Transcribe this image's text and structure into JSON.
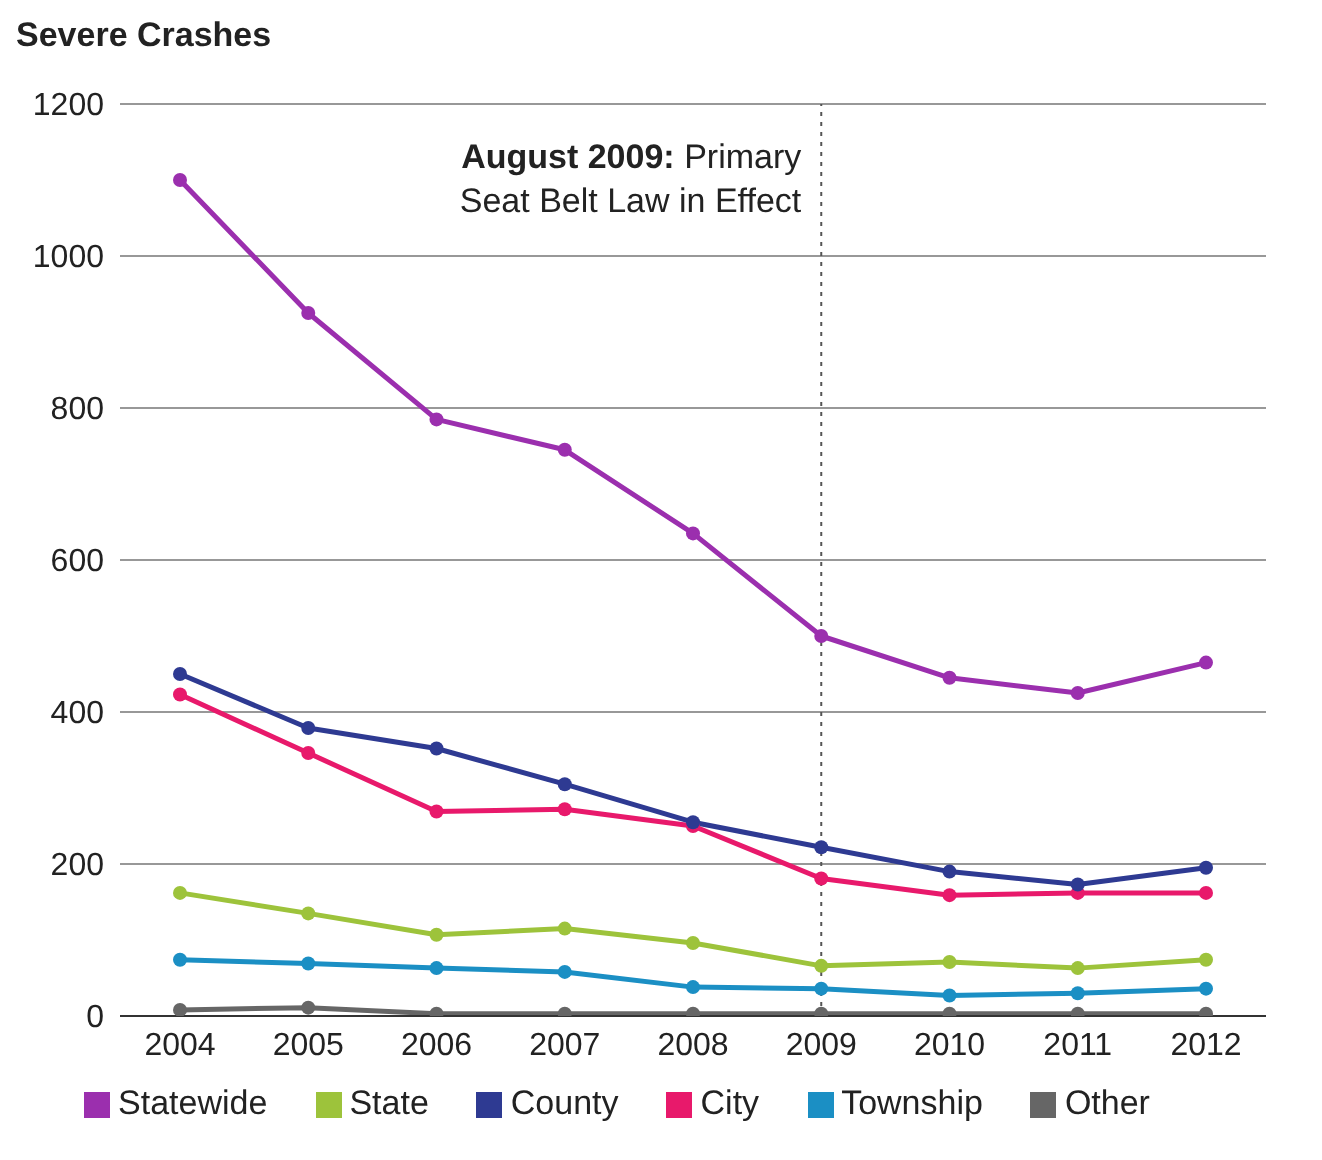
{
  "chart_data": {
    "type": "line",
    "title": "Severe Crashes",
    "categories": [
      "2004",
      "2005",
      "2006",
      "2007",
      "2008",
      "2009",
      "2010",
      "2011",
      "2012"
    ],
    "series": [
      {
        "name": "Statewide",
        "color": "#9b2fae",
        "values": [
          1100,
          925,
          785,
          745,
          635,
          500,
          445,
          425,
          465
        ]
      },
      {
        "name": "State",
        "color": "#9dc33b",
        "values": [
          162,
          135,
          107,
          115,
          96,
          66,
          71,
          63,
          74
        ]
      },
      {
        "name": "County",
        "color": "#2e3a92",
        "values": [
          450,
          379,
          352,
          305,
          255,
          222,
          190,
          173,
          195
        ]
      },
      {
        "name": "City",
        "color": "#e8196b",
        "values": [
          423,
          346,
          269,
          272,
          250,
          181,
          159,
          162,
          162
        ]
      },
      {
        "name": "Township",
        "color": "#1b8fc4",
        "values": [
          74,
          69,
          63,
          58,
          38,
          36,
          27,
          30,
          36
        ]
      },
      {
        "name": "Other",
        "color": "#666666",
        "values": [
          8,
          11,
          3,
          3,
          3,
          3,
          3,
          3,
          3
        ]
      }
    ],
    "ylim": [
      0,
      1200
    ],
    "yticks": [
      0,
      200,
      400,
      600,
      800,
      1000,
      1200
    ],
    "grid": "y",
    "legend": "bottom",
    "marker": "circle",
    "line_style": "solid",
    "ref_lines": [
      {
        "axis": "x",
        "value": "2009",
        "label": "August 2009: Primary Seat Belt Law in Effect",
        "color": "#555555",
        "line_style": "dotted"
      }
    ]
  }
}
